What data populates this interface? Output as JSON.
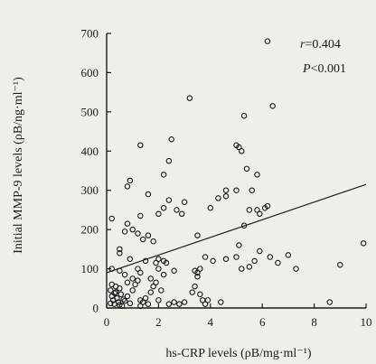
{
  "chart_data": {
    "type": "scatter",
    "xlabel": "hs-CRP levels (ρB/mg·ml⁻¹)",
    "ylabel": "Initial MMP-9 levels (ρB/ng·ml⁻¹)",
    "xlim": [
      0,
      10
    ],
    "ylim": [
      0,
      700
    ],
    "x_ticks": [
      0,
      2,
      4,
      6,
      8,
      10
    ],
    "y_ticks": [
      0,
      100,
      200,
      300,
      400,
      500,
      600,
      700
    ],
    "grid": false,
    "annotation": {
      "r_label": "r",
      "r_value": "=0.404",
      "p_label": "P",
      "p_value": "<0.001"
    },
    "regression_line": {
      "x": [
        0,
        10
      ],
      "y": [
        90,
        315
      ]
    },
    "series": [
      {
        "points": [
          [
            0.15,
            45
          ],
          [
            0.2,
            30
          ],
          [
            0.25,
            20
          ],
          [
            0.3,
            10
          ],
          [
            0.35,
            40
          ],
          [
            0.4,
            25
          ],
          [
            0.45,
            15
          ],
          [
            0.5,
            50
          ],
          [
            0.55,
            35
          ],
          [
            0.6,
            5
          ],
          [
            0.2,
            60
          ],
          [
            0.35,
            55
          ],
          [
            0.5,
            8
          ],
          [
            0.15,
            12
          ],
          [
            0.3,
            38
          ],
          [
            0.65,
            22
          ],
          [
            0.7,
            18
          ],
          [
            0.8,
            30
          ],
          [
            0.9,
            12
          ],
          [
            1.0,
            45
          ],
          [
            1.1,
            60
          ],
          [
            1.2,
            70
          ],
          [
            1.3,
            20
          ],
          [
            1.4,
            15
          ],
          [
            1.5,
            25
          ],
          [
            1.6,
            10
          ],
          [
            0.8,
            65
          ],
          [
            1.0,
            75
          ],
          [
            1.3,
            5
          ],
          [
            1.7,
            40
          ],
          [
            1.8,
            55
          ],
          [
            1.9,
            65
          ],
          [
            2.0,
            20
          ],
          [
            2.1,
            45
          ],
          [
            2.2,
            85
          ],
          [
            2.4,
            10
          ],
          [
            2.6,
            15
          ],
          [
            2.8,
            10
          ],
          [
            2.0,
            100
          ],
          [
            1.9,
            115
          ],
          [
            3.0,
            15
          ],
          [
            3.3,
            40
          ],
          [
            3.4,
            55
          ],
          [
            3.5,
            80
          ],
          [
            3.6,
            35
          ],
          [
            3.7,
            20
          ],
          [
            3.8,
            10
          ],
          [
            3.9,
            20
          ],
          [
            3.4,
            95
          ],
          [
            3.6,
            100
          ],
          [
            3.5,
            90
          ],
          [
            4.4,
            15
          ],
          [
            0.2,
            100
          ],
          [
            0.5,
            95
          ],
          [
            0.5,
            140
          ],
          [
            0.7,
            85
          ],
          [
            0.9,
            125
          ],
          [
            1.2,
            100
          ],
          [
            1.3,
            90
          ],
          [
            1.5,
            120
          ],
          [
            1.7,
            75
          ],
          [
            2.0,
            125
          ],
          [
            2.3,
            115
          ],
          [
            2.6,
            95
          ],
          [
            2.2,
            120
          ],
          [
            3.8,
            130
          ],
          [
            4.1,
            120
          ],
          [
            4.6,
            125
          ],
          [
            5.0,
            130
          ],
          [
            5.2,
            100
          ],
          [
            5.5,
            105
          ],
          [
            5.9,
            145
          ],
          [
            6.3,
            130
          ],
          [
            6.6,
            115
          ],
          [
            5.7,
            120
          ],
          [
            5.1,
            160
          ],
          [
            0.2,
            228
          ],
          [
            0.5,
            150
          ],
          [
            0.7,
            195
          ],
          [
            0.8,
            215
          ],
          [
            1.0,
            200
          ],
          [
            1.2,
            190
          ],
          [
            1.4,
            175
          ],
          [
            1.6,
            185
          ],
          [
            1.8,
            170
          ],
          [
            1.3,
            235
          ],
          [
            2.0,
            240
          ],
          [
            2.2,
            255
          ],
          [
            2.4,
            275
          ],
          [
            2.7,
            250
          ],
          [
            2.9,
            240
          ],
          [
            3.0,
            270
          ],
          [
            3.5,
            185
          ],
          [
            4.0,
            255
          ],
          [
            4.6,
            285
          ],
          [
            5.0,
            300
          ],
          [
            5.3,
            210
          ],
          [
            5.5,
            250
          ],
          [
            5.8,
            250
          ],
          [
            6.1,
            255
          ],
          [
            5.9,
            240
          ],
          [
            6.2,
            260
          ],
          [
            0.8,
            310
          ],
          [
            0.9,
            325
          ],
          [
            1.3,
            415
          ],
          [
            1.6,
            290
          ],
          [
            2.2,
            340
          ],
          [
            2.4,
            375
          ],
          [
            2.5,
            430
          ],
          [
            3.2,
            535
          ],
          [
            4.3,
            280
          ],
          [
            4.6,
            300
          ],
          [
            5.0,
            415
          ],
          [
            5.1,
            410
          ],
          [
            5.2,
            400
          ],
          [
            5.3,
            490
          ],
          [
            5.4,
            355
          ],
          [
            5.6,
            300
          ],
          [
            5.8,
            340
          ],
          [
            6.2,
            680
          ],
          [
            6.4,
            515
          ],
          [
            7.0,
            135
          ],
          [
            7.3,
            100
          ],
          [
            8.6,
            15
          ],
          [
            9.0,
            110
          ],
          [
            9.9,
            165
          ]
        ]
      }
    ]
  }
}
